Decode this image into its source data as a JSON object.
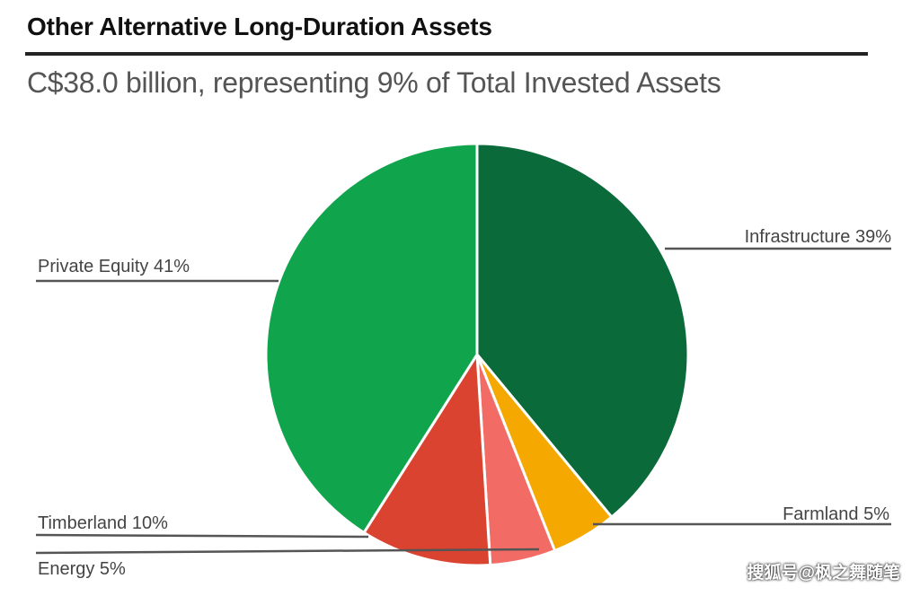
{
  "colors": {
    "Infrastructure": "#0a6a3a",
    "Farmland": "#f5a800",
    "Energy": "#f26b64",
    "Timberland": "#d9432f",
    "Private Equity": "#10a54c"
  },
  "chart_data": {
    "type": "pie",
    "title": "Other Alternative Long-Duration Assets",
    "subtitle": "C$38.0 billion, representing 9% of Total Invested Assets",
    "slices": [
      {
        "label": "Infrastructure",
        "value": 39,
        "display": "Infrastructure 39%"
      },
      {
        "label": "Farmland",
        "value": 5,
        "display": "Farmland 5%"
      },
      {
        "label": "Energy",
        "value": 5,
        "display": "Energy 5%"
      },
      {
        "label": "Timberland",
        "value": 10,
        "display": "Timberland 10%"
      },
      {
        "label": "Private Equity",
        "value": 41,
        "display": "Private Equity 41%"
      }
    ]
  },
  "watermark": "搜狐号@枫之舞随笔"
}
